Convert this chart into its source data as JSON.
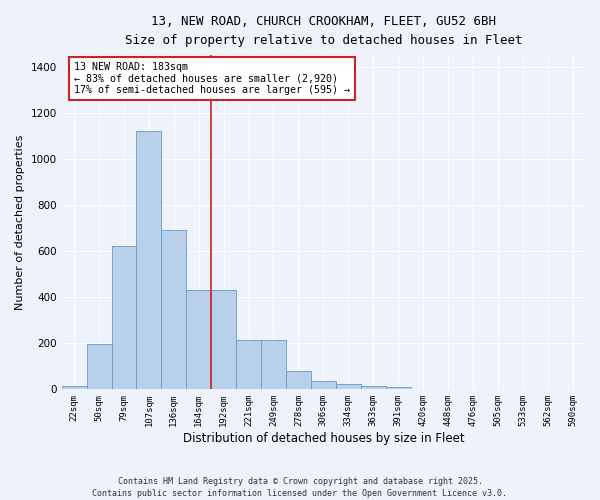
{
  "title_line1": "13, NEW ROAD, CHURCH CROOKHAM, FLEET, GU52 6BH",
  "title_line2": "Size of property relative to detached houses in Fleet",
  "xlabel": "Distribution of detached houses by size in Fleet",
  "ylabel": "Number of detached properties",
  "categories": [
    "22sqm",
    "50sqm",
    "79sqm",
    "107sqm",
    "136sqm",
    "164sqm",
    "192sqm",
    "221sqm",
    "249sqm",
    "278sqm",
    "306sqm",
    "334sqm",
    "363sqm",
    "391sqm",
    "420sqm",
    "448sqm",
    "476sqm",
    "505sqm",
    "533sqm",
    "562sqm",
    "590sqm"
  ],
  "values": [
    15,
    195,
    620,
    1120,
    690,
    430,
    430,
    215,
    215,
    80,
    35,
    25,
    15,
    8,
    2,
    0,
    0,
    0,
    0,
    0,
    0
  ],
  "bar_color": "#b8d0ea",
  "bar_edge_color": "#6699cc",
  "background_color": "#eef2fa",
  "grid_color": "#ffffff",
  "annotation_text": "13 NEW ROAD: 183sqm\n← 83% of detached houses are smaller (2,920)\n17% of semi-detached houses are larger (595) →",
  "vline_color": "#cc2222",
  "annotation_box_edgecolor": "#cc2222",
  "ylim": [
    0,
    1450
  ],
  "yticks": [
    0,
    200,
    400,
    600,
    800,
    1000,
    1200,
    1400
  ],
  "footer_line1": "Contains HM Land Registry data © Crown copyright and database right 2025.",
  "footer_line2": "Contains public sector information licensed under the Open Government Licence v3.0."
}
